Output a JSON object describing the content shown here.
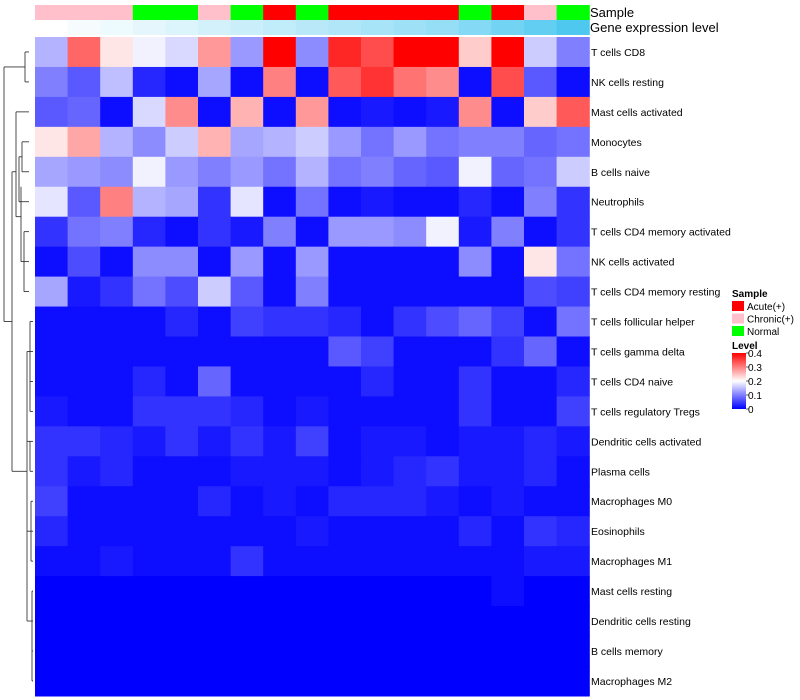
{
  "chart_data": {
    "type": "heatmap",
    "title": "",
    "annotation_tracks": [
      "Sample",
      "Gene expression level"
    ],
    "columns": [
      {
        "sample": "Chronic(+)",
        "expression": 0.0
      },
      {
        "sample": "Chronic(+)",
        "expression": 0.05
      },
      {
        "sample": "Chronic(+)",
        "expression": 0.1
      },
      {
        "sample": "Normal",
        "expression": 0.15
      },
      {
        "sample": "Normal",
        "expression": 0.2
      },
      {
        "sample": "Chronic(+)",
        "expression": 0.25
      },
      {
        "sample": "Normal",
        "expression": 0.3
      },
      {
        "sample": "Acute(+)",
        "expression": 0.35
      },
      {
        "sample": "Normal",
        "expression": 0.4
      },
      {
        "sample": "Acute(+)",
        "expression": 0.45
      },
      {
        "sample": "Acute(+)",
        "expression": 0.5
      },
      {
        "sample": "Acute(+)",
        "expression": 0.55
      },
      {
        "sample": "Acute(+)",
        "expression": 0.6
      },
      {
        "sample": "Normal",
        "expression": 0.7
      },
      {
        "sample": "Acute(+)",
        "expression": 0.8
      },
      {
        "sample": "Chronic(+)",
        "expression": 0.9
      },
      {
        "sample": "Normal",
        "expression": 1.0
      }
    ],
    "rows": [
      "T cells CD8",
      "NK cells resting",
      "Mast cells activated",
      "Monocytes",
      "B cells naive",
      "Neutrophils",
      "T cells CD4 memory activated",
      "NK cells activated",
      "T cells CD4 memory resting",
      "T cells follicular helper",
      "T cells gamma delta",
      "T cells CD4 naive",
      "T cells regulatory  Tregs",
      "Dendritic cells activated",
      "Plasma cells",
      "Macrophages M0",
      "Eosinophils",
      "Macrophages M1",
      "Mast cells resting",
      "Dendritic cells resting",
      "B cells memory",
      "Macrophages M2"
    ],
    "values": [
      [
        0.14,
        0.32,
        0.22,
        0.19,
        0.17,
        0.28,
        0.12,
        0.4,
        0.11,
        0.37,
        0.34,
        0.4,
        0.4,
        0.24,
        0.4,
        0.16,
        0.1
      ],
      [
        0.1,
        0.07,
        0.15,
        0.03,
        0.01,
        0.13,
        0.01,
        0.3,
        0.01,
        0.33,
        0.36,
        0.31,
        0.29,
        0.01,
        0.34,
        0.07,
        0.01
      ],
      [
        0.07,
        0.08,
        0.01,
        0.17,
        0.29,
        0.01,
        0.26,
        0.01,
        0.28,
        0.01,
        0.02,
        0.01,
        0.02,
        0.29,
        0.01,
        0.24,
        0.33
      ],
      [
        0.22,
        0.27,
        0.14,
        0.11,
        0.16,
        0.26,
        0.13,
        0.14,
        0.16,
        0.12,
        0.09,
        0.12,
        0.09,
        0.1,
        0.1,
        0.08,
        0.09
      ],
      [
        0.13,
        0.12,
        0.11,
        0.19,
        0.12,
        0.1,
        0.12,
        0.09,
        0.14,
        0.09,
        0.1,
        0.08,
        0.07,
        0.19,
        0.08,
        0.09,
        0.16
      ],
      [
        0.18,
        0.07,
        0.3,
        0.14,
        0.13,
        0.04,
        0.18,
        0.01,
        0.09,
        0.01,
        0.02,
        0.01,
        0.01,
        0.03,
        0.01,
        0.1,
        0.04
      ],
      [
        0.04,
        0.09,
        0.1,
        0.03,
        0.01,
        0.04,
        0.02,
        0.1,
        0.01,
        0.12,
        0.12,
        0.11,
        0.19,
        0.02,
        0.1,
        0.01,
        0.04
      ],
      [
        0.01,
        0.06,
        0.01,
        0.11,
        0.11,
        0.01,
        0.12,
        0.01,
        0.12,
        0.01,
        0.01,
        0.01,
        0.01,
        0.11,
        0.01,
        0.22,
        0.09
      ],
      [
        0.13,
        0.02,
        0.04,
        0.09,
        0.06,
        0.16,
        0.07,
        0.01,
        0.1,
        0.01,
        0.01,
        0.01,
        0.01,
        0.01,
        0.01,
        0.06,
        0.05
      ],
      [
        0.01,
        0.01,
        0.01,
        0.01,
        0.03,
        0.01,
        0.05,
        0.04,
        0.04,
        0.03,
        0.01,
        0.04,
        0.06,
        0.08,
        0.05,
        0.01,
        0.09
      ],
      [
        0.01,
        0.01,
        0.01,
        0.01,
        0.01,
        0.01,
        0.01,
        0.01,
        0.01,
        0.07,
        0.05,
        0.01,
        0.01,
        0.01,
        0.04,
        0.08,
        0.01
      ],
      [
        0.01,
        0.01,
        0.01,
        0.03,
        0.01,
        0.08,
        0.01,
        0.01,
        0.01,
        0.01,
        0.03,
        0.01,
        0.01,
        0.04,
        0.01,
        0.01,
        0.03
      ],
      [
        0.02,
        0.01,
        0.01,
        0.04,
        0.04,
        0.04,
        0.03,
        0.01,
        0.02,
        0.01,
        0.01,
        0.01,
        0.01,
        0.04,
        0.01,
        0.01,
        0.05
      ],
      [
        0.04,
        0.04,
        0.03,
        0.02,
        0.04,
        0.02,
        0.04,
        0.02,
        0.05,
        0.01,
        0.02,
        0.02,
        0.01,
        0.02,
        0.02,
        0.03,
        0.02
      ],
      [
        0.04,
        0.02,
        0.03,
        0.01,
        0.01,
        0.01,
        0.02,
        0.02,
        0.02,
        0.01,
        0.02,
        0.03,
        0.04,
        0.02,
        0.02,
        0.03,
        0.01
      ],
      [
        0.05,
        0.01,
        0.01,
        0.01,
        0.01,
        0.03,
        0.01,
        0.02,
        0.01,
        0.03,
        0.03,
        0.03,
        0.02,
        0.01,
        0.02,
        0.01,
        0.01
      ],
      [
        0.03,
        0.01,
        0.01,
        0.01,
        0.01,
        0.01,
        0.01,
        0.01,
        0.02,
        0.01,
        0.01,
        0.01,
        0.01,
        0.03,
        0.01,
        0.04,
        0.03
      ],
      [
        0.01,
        0.01,
        0.02,
        0.01,
        0.01,
        0.01,
        0.04,
        0.01,
        0.01,
        0.01,
        0.01,
        0.01,
        0.01,
        0.01,
        0.01,
        0.02,
        0.02
      ],
      [
        0.0,
        0.0,
        0.0,
        0.0,
        0.0,
        0.0,
        0.0,
        0.0,
        0.0,
        0.0,
        0.0,
        0.0,
        0.0,
        0.0,
        0.01,
        0.0,
        0.0
      ],
      [
        0.0,
        0.0,
        0.0,
        0.0,
        0.0,
        0.0,
        0.0,
        0.0,
        0.0,
        0.0,
        0.0,
        0.0,
        0.0,
        0.0,
        0.0,
        0.0,
        0.0
      ],
      [
        0.0,
        0.0,
        0.0,
        0.0,
        0.0,
        0.0,
        0.0,
        0.0,
        0.0,
        0.0,
        0.0,
        0.0,
        0.0,
        0.0,
        0.0,
        0.0,
        0.0
      ],
      [
        0.0,
        0.0,
        0.0,
        0.0,
        0.0,
        0.0,
        0.0,
        0.0,
        0.0,
        0.0,
        0.0,
        0.0,
        0.0,
        0.0,
        0.0,
        0.0,
        0.0
      ]
    ],
    "color_scale": {
      "low": "#0000ff",
      "mid": "#ffffff",
      "high": "#ff0000",
      "min": 0,
      "mid_value": 0.2,
      "max": 0.4
    },
    "legend": {
      "sample_title": "Sample",
      "sample_entries": [
        {
          "label": "Acute(+)",
          "color": "#ff0000"
        },
        {
          "label": "Chronic(+)",
          "color": "#ffc0cb"
        },
        {
          "label": "Normal",
          "color": "#00ff00"
        }
      ],
      "level_title": "Level",
      "level_ticks": [
        "0",
        "0.1",
        "0.2",
        "0.3",
        "0.4"
      ],
      "placement": "right"
    },
    "expression_colors": {
      "low": "#ffffff",
      "high": "#4fc8f0"
    }
  }
}
